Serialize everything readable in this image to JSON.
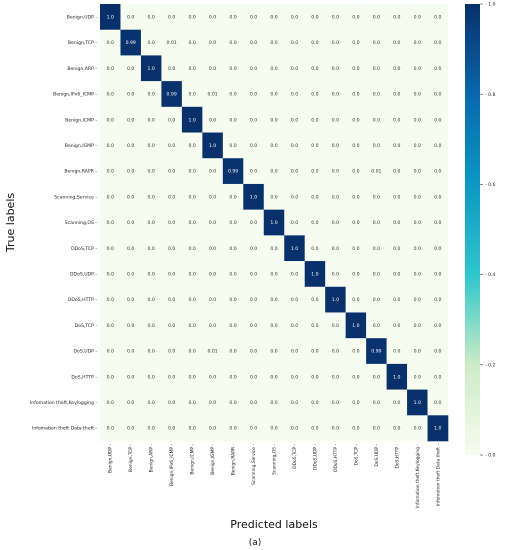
{
  "chart_data": {
    "type": "heatmap",
    "xlabel": "Predicted labels",
    "ylabel": "True labels",
    "caption": "(a)",
    "labels": [
      "Benign,UDP",
      "Benign,TCP",
      "Benign,ARP",
      "Benign,IPv6_ICMP",
      "Benign,ICMP",
      "Benign,IGMP",
      "Benign,RAPR",
      "Scanning,Service",
      "Scanning,OS",
      "DDoS,TCP",
      "DDoS,UDP",
      "DDoS,HTTP",
      "DoS,TCP",
      "DoS,UDP",
      "DoS,HTTP",
      "Infomation theft,Keylogging",
      "Infomation theft Data theft"
    ],
    "matrix": [
      [
        1.0,
        0.0,
        0.0,
        0.0,
        0.0,
        0.0,
        0.0,
        0.0,
        0.0,
        0.0,
        0.0,
        0.0,
        0.0,
        0.0,
        0.0,
        0.0,
        0.0
      ],
      [
        0.0,
        0.99,
        0.0,
        0.01,
        0.0,
        0.0,
        0.0,
        0.0,
        0.0,
        0.0,
        0.0,
        0.0,
        0.0,
        0.0,
        0.0,
        0.0,
        0.0
      ],
      [
        0.0,
        0.0,
        1.0,
        0.0,
        0.0,
        0.0,
        0.0,
        0.0,
        0.0,
        0.0,
        0.0,
        0.0,
        0.0,
        0.0,
        0.0,
        0.0,
        0.0
      ],
      [
        0.0,
        0.0,
        0.0,
        0.99,
        0.0,
        0.01,
        0.0,
        0.0,
        0.0,
        0.0,
        0.0,
        0.0,
        0.0,
        0.0,
        0.0,
        0.0,
        0.0
      ],
      [
        0.0,
        0.0,
        0.0,
        0.0,
        1.0,
        0.0,
        0.0,
        0.0,
        0.0,
        0.0,
        0.0,
        0.0,
        0.0,
        0.0,
        0.0,
        0.0,
        0.0
      ],
      [
        0.0,
        0.0,
        0.0,
        0.0,
        0.0,
        1.0,
        0.0,
        0.0,
        0.0,
        0.0,
        0.0,
        0.0,
        0.0,
        0.0,
        0.0,
        0.0,
        0.0
      ],
      [
        0.0,
        0.0,
        0.0,
        0.0,
        0.0,
        0.0,
        0.99,
        0.0,
        0.0,
        0.0,
        0.0,
        0.0,
        0.0,
        0.01,
        0.0,
        0.0,
        0.0
      ],
      [
        0.0,
        0.0,
        0.0,
        0.0,
        0.0,
        0.0,
        0.0,
        1.0,
        0.0,
        0.0,
        0.0,
        0.0,
        0.0,
        0.0,
        0.0,
        0.0,
        0.0
      ],
      [
        0.0,
        0.0,
        0.0,
        0.0,
        0.0,
        0.0,
        0.0,
        0.0,
        1.0,
        0.0,
        0.0,
        0.0,
        0.0,
        0.0,
        0.0,
        0.0,
        0.0
      ],
      [
        0.0,
        0.0,
        0.0,
        0.0,
        0.0,
        0.0,
        0.0,
        0.0,
        0.0,
        1.0,
        0.0,
        0.0,
        0.0,
        0.0,
        0.0,
        0.0,
        0.0
      ],
      [
        0.0,
        0.0,
        0.0,
        0.0,
        0.0,
        0.0,
        0.0,
        0.0,
        0.0,
        0.0,
        1.0,
        0.0,
        0.0,
        0.0,
        0.0,
        0.0,
        0.0
      ],
      [
        0.0,
        0.0,
        0.0,
        0.0,
        0.0,
        0.0,
        0.0,
        0.0,
        0.0,
        0.0,
        0.0,
        1.0,
        0.0,
        0.0,
        0.0,
        0.0,
        0.0
      ],
      [
        0.0,
        0.0,
        0.0,
        0.0,
        0.0,
        0.0,
        0.0,
        0.0,
        0.0,
        0.0,
        0.0,
        0.0,
        1.0,
        0.0,
        0.0,
        0.0,
        0.0
      ],
      [
        0.0,
        0.0,
        0.0,
        0.0,
        0.0,
        0.01,
        0.0,
        0.0,
        0.0,
        0.0,
        0.0,
        0.0,
        0.0,
        0.99,
        0.0,
        0.0,
        0.0
      ],
      [
        0.0,
        0.0,
        0.0,
        0.0,
        0.0,
        0.0,
        0.0,
        0.0,
        0.0,
        0.0,
        0.0,
        0.0,
        0.0,
        0.0,
        1.0,
        0.0,
        0.0
      ],
      [
        0.0,
        0.0,
        0.0,
        0.0,
        0.0,
        0.0,
        0.0,
        0.0,
        0.0,
        0.0,
        0.0,
        0.0,
        0.0,
        0.0,
        0.0,
        1.0,
        0.0
      ],
      [
        0.0,
        0.0,
        0.0,
        0.0,
        0.0,
        0.0,
        0.0,
        0.0,
        0.0,
        0.0,
        0.0,
        0.0,
        0.0,
        0.0,
        0.0,
        0.0,
        1.0
      ]
    ],
    "value_range": [
      0.0,
      1.0
    ],
    "colorbar": {
      "ticks": [
        "0.0",
        "0.2",
        "0.4",
        "0.6",
        "0.8",
        "1.0"
      ],
      "colormap": "GnBu",
      "colors": [
        "#f7fcf0",
        "#ccebc5",
        "#2ec6cc",
        "#0b98c4",
        "#0868ac",
        "#08306b"
      ]
    },
    "grid": false
  }
}
